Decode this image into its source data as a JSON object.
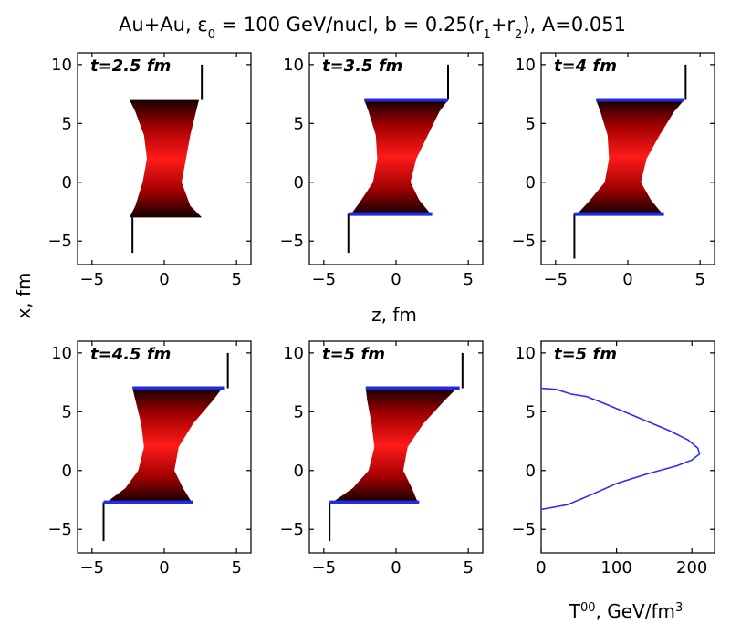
{
  "figure": {
    "title": "Au+Au, ε0 = 100 GeV/nucl, b = 0.25(r1+r2), A=0.051",
    "title_parts": [
      "Au+Au, ε",
      "0",
      " = 100 GeV/nucl, b = 0.25(r",
      "1",
      "+r",
      "2",
      "), A=0.051"
    ],
    "ylabel": "x, fm",
    "zlabel": "z, fm",
    "t00_label_parts": [
      "T",
      "00",
      ", GeV/fm",
      "3"
    ]
  },
  "chart_data": [
    {
      "type": "area",
      "panel": "t=2.5 fm",
      "time_label": "t=2.5 fm",
      "xlabel": "",
      "ylabel": "x, fm",
      "xlim": [
        -6,
        6
      ],
      "ylim": [
        -7,
        11
      ],
      "xticks": [
        -5,
        0,
        5
      ],
      "yticks": [
        -5,
        0,
        5,
        10
      ],
      "shape": [
        {
          "x": -3.0,
          "z_left": -2.4,
          "z_right": 2.6
        },
        {
          "x": -2.0,
          "z_left": -2.0,
          "z_right": 1.8
        },
        {
          "x": 0.0,
          "z_left": -1.5,
          "z_right": 1.2
        },
        {
          "x": 2.0,
          "z_left": -1.2,
          "z_right": 1.5
        },
        {
          "x": 4.0,
          "z_left": -1.4,
          "z_right": 1.8
        },
        {
          "x": 6.0,
          "z_left": -2.0,
          "z_right": 2.2
        },
        {
          "x": 7.0,
          "z_left": -2.4,
          "z_right": 2.4
        }
      ],
      "boundaries": [],
      "spikes": [
        {
          "z": -2.2,
          "x_from": -6.0,
          "x_to": -3.0
        },
        {
          "z": 2.6,
          "x_from": 7.0,
          "x_to": 10.0
        }
      ]
    },
    {
      "type": "area",
      "panel": "t=3.5 fm",
      "time_label": "t=3.5 fm",
      "xlabel": "",
      "ylabel": "",
      "xlim": [
        -6,
        6
      ],
      "ylim": [
        -7,
        11
      ],
      "xticks": [
        -5,
        0,
        5
      ],
      "yticks": [
        -5,
        0,
        5,
        10
      ],
      "shape": [
        {
          "x": -2.7,
          "z_left": -3.1,
          "z_right": 2.4
        },
        {
          "x": -1.5,
          "z_left": -2.4,
          "z_right": 1.6
        },
        {
          "x": 0.0,
          "z_left": -1.6,
          "z_right": 1.0
        },
        {
          "x": 2.0,
          "z_left": -1.3,
          "z_right": 1.4
        },
        {
          "x": 4.0,
          "z_left": -1.4,
          "z_right": 2.2
        },
        {
          "x": 6.0,
          "z_left": -1.9,
          "z_right": 3.0
        },
        {
          "x": 7.0,
          "z_left": -2.2,
          "z_right": 3.6
        }
      ],
      "boundaries": [
        {
          "x": -2.7,
          "z_from": -3.3,
          "z_to": 2.5
        },
        {
          "x": 7.0,
          "z_from": -2.2,
          "z_to": 3.6
        }
      ],
      "spikes": [
        {
          "z": -3.3,
          "x_from": -6.0,
          "x_to": -2.7
        },
        {
          "z": 3.6,
          "x_from": 7.0,
          "x_to": 10.0
        }
      ]
    },
    {
      "type": "area",
      "panel": "t=4 fm",
      "time_label": "t=4 fm",
      "xlabel": "",
      "ylabel": "",
      "xlim": [
        -6,
        6
      ],
      "ylim": [
        -7,
        11
      ],
      "xticks": [
        -5,
        0,
        5
      ],
      "yticks": [
        -5,
        0,
        5,
        10
      ],
      "shape": [
        {
          "x": -2.7,
          "z_left": -3.5,
          "z_right": 2.4
        },
        {
          "x": -1.5,
          "z_left": -2.6,
          "z_right": 1.6
        },
        {
          "x": 0.0,
          "z_left": -1.6,
          "z_right": 0.9
        },
        {
          "x": 2.0,
          "z_left": -1.3,
          "z_right": 1.3
        },
        {
          "x": 4.0,
          "z_left": -1.4,
          "z_right": 2.2
        },
        {
          "x": 6.0,
          "z_left": -1.9,
          "z_right": 3.2
        },
        {
          "x": 7.0,
          "z_left": -2.2,
          "z_right": 3.9
        }
      ],
      "boundaries": [
        {
          "x": -2.7,
          "z_from": -3.7,
          "z_to": 2.5
        },
        {
          "x": 7.0,
          "z_from": -2.2,
          "z_to": 3.9
        }
      ],
      "spikes": [
        {
          "z": -3.7,
          "x_from": -6.5,
          "x_to": -2.7
        },
        {
          "z": 4.0,
          "x_from": 7.0,
          "x_to": 10.0
        }
      ]
    },
    {
      "type": "area",
      "panel": "t=4.5 fm",
      "time_label": "t=4.5 fm",
      "xlabel": "",
      "ylabel": "",
      "xlim": [
        -6,
        6
      ],
      "ylim": [
        -7,
        11
      ],
      "xticks": [
        -5,
        0,
        5
      ],
      "yticks": [
        -5,
        0,
        5,
        10
      ],
      "shape": [
        {
          "x": -2.7,
          "z_left": -4.0,
          "z_right": 1.9
        },
        {
          "x": -1.5,
          "z_left": -2.7,
          "z_right": 1.3
        },
        {
          "x": 0.0,
          "z_left": -1.8,
          "z_right": 0.7
        },
        {
          "x": 2.0,
          "z_left": -1.4,
          "z_right": 1.0
        },
        {
          "x": 4.0,
          "z_left": -1.6,
          "z_right": 2.0
        },
        {
          "x": 6.0,
          "z_left": -2.0,
          "z_right": 3.4
        },
        {
          "x": 7.0,
          "z_left": -2.2,
          "z_right": 4.0
        }
      ],
      "boundaries": [
        {
          "x": -2.7,
          "z_from": -4.2,
          "z_to": 2.0
        },
        {
          "x": 7.0,
          "z_from": -2.2,
          "z_to": 4.2
        }
      ],
      "spikes": [
        {
          "z": -4.2,
          "x_from": -6.0,
          "x_to": -2.7
        },
        {
          "z": 4.4,
          "x_from": 7.0,
          "x_to": 10.0
        }
      ]
    },
    {
      "type": "area",
      "panel": "t=5 fm",
      "time_label": "t=5 fm",
      "xlabel": "",
      "ylabel": "",
      "xlim": [
        -6,
        6
      ],
      "ylim": [
        -7,
        11
      ],
      "xticks": [
        -5,
        0,
        5
      ],
      "yticks": [
        -5,
        0,
        5,
        10
      ],
      "shape": [
        {
          "x": -2.7,
          "z_left": -4.4,
          "z_right": 1.5
        },
        {
          "x": -1.5,
          "z_left": -3.0,
          "z_right": 1.1
        },
        {
          "x": 0.0,
          "z_left": -1.9,
          "z_right": 0.5
        },
        {
          "x": 2.0,
          "z_left": -1.5,
          "z_right": 0.8
        },
        {
          "x": 4.0,
          "z_left": -1.7,
          "z_right": 1.9
        },
        {
          "x": 6.0,
          "z_left": -2.0,
          "z_right": 3.4
        },
        {
          "x": 7.0,
          "z_left": -2.1,
          "z_right": 4.2
        }
      ],
      "boundaries": [
        {
          "x": -2.7,
          "z_from": -4.6,
          "z_to": 1.6
        },
        {
          "x": 7.0,
          "z_from": -2.1,
          "z_to": 4.4
        }
      ],
      "spikes": [
        {
          "z": -4.6,
          "x_from": -6.0,
          "x_to": -2.7
        },
        {
          "z": 4.6,
          "x_from": 7.0,
          "x_to": 10.0
        }
      ]
    },
    {
      "type": "line",
      "panel": "t=5 fm (energy density)",
      "time_label": "t=5 fm",
      "xlabel": "T00, GeV/fm3",
      "ylabel": "",
      "xlim": [
        0,
        230
      ],
      "ylim": [
        -7,
        11
      ],
      "xticks": [
        0,
        100,
        200
      ],
      "yticks": [
        -5,
        0,
        5,
        10
      ],
      "series": [
        {
          "points": [
            {
              "T00": 0,
              "x": 7.0
            },
            {
              "T00": 20,
              "x": 6.9
            },
            {
              "T00": 40,
              "x": 6.5
            },
            {
              "T00": 60,
              "x": 6.3
            },
            {
              "T00": 80,
              "x": 5.8
            },
            {
              "T00": 110,
              "x": 5.0
            },
            {
              "T00": 140,
              "x": 4.2
            },
            {
              "T00": 170,
              "x": 3.4
            },
            {
              "T00": 195,
              "x": 2.6
            },
            {
              "T00": 208,
              "x": 1.9
            },
            {
              "T00": 210,
              "x": 1.4
            },
            {
              "T00": 200,
              "x": 0.9
            },
            {
              "T00": 180,
              "x": 0.4
            },
            {
              "T00": 140,
              "x": -0.3
            },
            {
              "T00": 100,
              "x": -1.1
            },
            {
              "T00": 65,
              "x": -2.1
            },
            {
              "T00": 35,
              "x": -2.9
            },
            {
              "T00": 10,
              "x": -3.2
            },
            {
              "T00": 0,
              "x": -3.3
            }
          ]
        }
      ]
    }
  ],
  "colors": {
    "frame": "#000000",
    "boundary": "#1f2be8",
    "curve": "#2b2bff",
    "fill_core": "#ff1a1a",
    "fill_edge": "#140000"
  }
}
